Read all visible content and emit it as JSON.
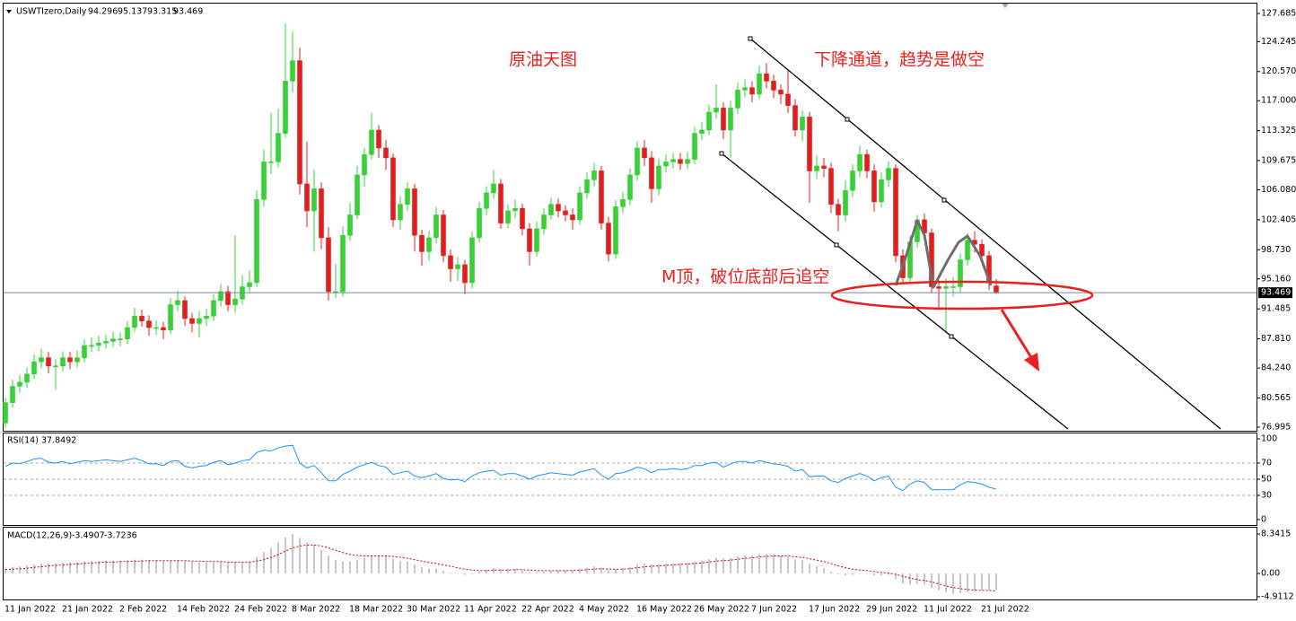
{
  "chart_data": [
    {
      "type": "candlestick",
      "title": "USWTIzero,Daily",
      "up_color": "#35d135",
      "down_color": "#e51d1d",
      "current_price_line_color": "#778899",
      "annotation_color": "#e8201e",
      "categories": [
        "11 Jan 2022",
        null,
        null,
        null,
        null,
        null,
        null,
        null,
        "21 Jan 2022",
        null,
        null,
        null,
        null,
        null,
        null,
        null,
        "2 Feb 2022",
        null,
        null,
        null,
        null,
        null,
        null,
        null,
        "14 Feb 2022",
        null,
        null,
        null,
        null,
        null,
        null,
        null,
        "24 Feb 2022",
        null,
        null,
        null,
        null,
        null,
        null,
        null,
        "8 Mar 2022",
        null,
        null,
        null,
        null,
        null,
        null,
        null,
        "18 Mar 2022",
        null,
        null,
        null,
        null,
        null,
        null,
        null,
        "30 Mar 2022",
        null,
        null,
        null,
        null,
        null,
        null,
        null,
        "11 Apr 2022",
        null,
        null,
        null,
        null,
        null,
        null,
        null,
        "22 Apr 2022",
        null,
        null,
        null,
        null,
        null,
        null,
        null,
        "4 May 2022",
        null,
        null,
        null,
        null,
        null,
        null,
        null,
        "16 May 2022",
        null,
        null,
        null,
        null,
        null,
        null,
        null,
        "26 May 2022",
        null,
        null,
        null,
        null,
        null,
        null,
        null,
        "7 Jun 2022",
        null,
        null,
        null,
        null,
        null,
        null,
        null,
        "17 Jun 2022",
        null,
        null,
        null,
        null,
        null,
        null,
        null,
        "29 Jun 2022",
        null,
        null,
        null,
        null,
        null,
        null,
        null,
        "11 Jul 2022",
        null,
        null,
        null,
        null,
        null,
        null,
        null,
        "21 Jul 2022",
        null,
        null
      ],
      "open": [
        77.5,
        80.0,
        82.0,
        82.5,
        83.5,
        85.0,
        85.5,
        84.5,
        84.5,
        85.5,
        85.0,
        85.5,
        87.0,
        87.0,
        87.3,
        87.5,
        87.8,
        87.8,
        89.2,
        90.6,
        90.0,
        89.2,
        89.2,
        88.9,
        92.0,
        92.5,
        90.3,
        89.7,
        90.3,
        90.6,
        92.5,
        93.6,
        92.0,
        92.7,
        94.2,
        94.7,
        104.9,
        109.5,
        109.5,
        113.0,
        119.4,
        121.9,
        106.8,
        103.5,
        106.2,
        100.2,
        93.6,
        93.6,
        100.5,
        103.0,
        107.9,
        110.4,
        113.4,
        111.2,
        110.0,
        102.4,
        104.3,
        106.2,
        100.5,
        98.5,
        100.2,
        103.0,
        98.0,
        96.4,
        96.9,
        94.7,
        100.2,
        103.8,
        105.7,
        106.8,
        102.0,
        103.5,
        103.8,
        101.3,
        98.5,
        101.3,
        103.0,
        104.3,
        103.5,
        103.0,
        102.4,
        105.7,
        107.3,
        108.4,
        102.0,
        98.2,
        104.0,
        104.9,
        107.9,
        111.2,
        110.0,
        106.2,
        109.0,
        109.5,
        109.8,
        109.3,
        109.8,
        113.0,
        113.4,
        115.6,
        116.1,
        113.4,
        116.1,
        118.3,
        118.6,
        117.8,
        120.3,
        119.4,
        118.3,
        117.8,
        116.4,
        113.4,
        115.0,
        108.4,
        109.0,
        108.7,
        104.3,
        103.0,
        106.0,
        108.4,
        110.4,
        108.4,
        104.6,
        107.3,
        108.7,
        98.0,
        95.3,
        99.7,
        102.4,
        100.8,
        94.2,
        94.0,
        94.2,
        94.2,
        97.5,
        99.9,
        99.4,
        98.0,
        94.296
      ],
      "high": [
        80.6,
        82.8,
        83.4,
        84.3,
        85.9,
        86.6,
        86.2,
        85.3,
        86.3,
        86.2,
        86.4,
        87.8,
        88.0,
        88.2,
        88.3,
        88.7,
        88.6,
        90.0,
        91.6,
        91.4,
        90.7,
        90.1,
        89.9,
        92.8,
        93.7,
        93.0,
        91.0,
        91.2,
        91.5,
        93.3,
        94.5,
        94.3,
        100.5,
        95.6,
        96.2,
        106.0,
        111.0,
        115.5,
        116.0,
        126.5,
        125.5,
        123.5,
        112.0,
        108.5,
        107.0,
        101.5,
        97.0,
        101.6,
        104.5,
        109.0,
        111.2,
        115.5,
        114.0,
        112.2,
        110.5,
        105.3,
        107.0,
        106.8,
        101.2,
        101.0,
        104.0,
        103.6,
        98.8,
        97.8,
        97.5,
        101.0,
        104.6,
        106.5,
        108.5,
        107.4,
        104.3,
        104.9,
        104.4,
        102.0,
        102.2,
        103.8,
        105.1,
        105.0,
        104.2,
        103.8,
        106.5,
        108.2,
        109.4,
        109.0,
        102.8,
        104.8,
        105.8,
        108.7,
        112.0,
        112.2,
        110.8,
        109.9,
        110.4,
        110.6,
        110.6,
        110.7,
        113.8,
        114.4,
        116.5,
        119.0,
        116.8,
        117.0,
        119.2,
        119.6,
        119.4,
        121.3,
        121.6,
        120.2,
        119.0,
        120.8,
        117.2,
        115.8,
        115.6,
        110.3,
        110.0,
        109.4,
        105.0,
        107.2,
        109.2,
        111.5,
        111.0,
        109.2,
        108.2,
        109.6,
        109.2,
        98.8,
        100.5,
        103.0,
        103.2,
        101.3,
        95.0,
        95.2,
        95.4,
        98.3,
        100.8,
        101.0,
        100.0,
        98.6,
        95.137
      ],
      "low": [
        76.9,
        79.4,
        81.2,
        81.8,
        82.9,
        84.2,
        83.6,
        81.6,
        83.8,
        84.1,
        84.3,
        84.9,
        86.2,
        86.3,
        86.6,
        86.8,
        86.9,
        87.2,
        88.7,
        89.3,
        88.2,
        88.3,
        87.8,
        88.4,
        91.2,
        89.4,
        88.6,
        88.0,
        89.4,
        90.0,
        91.8,
        91.2,
        91.0,
        92.0,
        93.5,
        94.2,
        104.0,
        108.0,
        108.8,
        112.5,
        118.0,
        105.5,
        101.5,
        98.5,
        98.8,
        92.5,
        92.8,
        93.0,
        99.8,
        102.5,
        106.5,
        109.8,
        110.0,
        108.5,
        101.5,
        101.2,
        103.5,
        98.5,
        96.8,
        97.4,
        99.5,
        97.2,
        94.8,
        94.9,
        93.3,
        94.0,
        99.6,
        103.0,
        105.0,
        101.3,
        101.4,
        102.6,
        100.5,
        96.8,
        97.9,
        100.6,
        102.4,
        102.7,
        102.2,
        101.2,
        101.8,
        105.0,
        106.5,
        101.2,
        97.3,
        97.6,
        103.2,
        104.2,
        107.2,
        109.0,
        104.5,
        105.4,
        108.2,
        108.7,
        108.5,
        108.6,
        109.2,
        112.2,
        112.8,
        114.8,
        112.3,
        110.0,
        115.4,
        117.4,
        116.8,
        117.2,
        118.5,
        117.3,
        116.6,
        115.5,
        112.6,
        112.0,
        104.5,
        107.4,
        107.6,
        103.2,
        101.0,
        102.2,
        105.2,
        107.6,
        107.5,
        103.4,
        103.9,
        106.4,
        97.2,
        94.5,
        94.6,
        99.0,
        99.8,
        93.4,
        91.5,
        88.5,
        93.0,
        93.5,
        96.8,
        98.4,
        97.2,
        93.8,
        93.315
      ],
      "close": [
        80.0,
        82.0,
        82.5,
        83.5,
        85.0,
        85.5,
        84.5,
        84.5,
        85.5,
        85.0,
        85.5,
        87.0,
        87.0,
        87.3,
        87.5,
        87.8,
        87.8,
        89.2,
        90.6,
        90.0,
        89.2,
        89.2,
        88.9,
        92.0,
        92.5,
        90.3,
        89.7,
        90.3,
        90.6,
        92.5,
        93.6,
        92.0,
        92.7,
        94.2,
        94.7,
        104.9,
        109.5,
        109.5,
        113.0,
        119.4,
        121.9,
        106.8,
        103.5,
        106.2,
        100.2,
        93.6,
        93.6,
        100.5,
        103.0,
        107.9,
        110.4,
        113.4,
        111.2,
        110.0,
        102.4,
        104.3,
        106.2,
        100.5,
        98.5,
        100.2,
        103.0,
        98.0,
        96.4,
        96.9,
        94.7,
        100.2,
        103.8,
        105.7,
        106.8,
        102.0,
        103.5,
        103.8,
        101.3,
        98.5,
        101.3,
        103.0,
        104.3,
        103.5,
        103.0,
        102.4,
        105.7,
        107.3,
        108.4,
        102.0,
        98.2,
        104.0,
        104.9,
        107.9,
        111.2,
        110.0,
        106.2,
        109.0,
        109.5,
        109.8,
        109.3,
        109.8,
        113.0,
        113.4,
        115.6,
        116.1,
        113.4,
        116.1,
        118.3,
        118.6,
        117.8,
        120.3,
        119.4,
        118.3,
        117.8,
        116.4,
        113.4,
        115.0,
        108.4,
        109.0,
        108.7,
        104.3,
        103.0,
        106.0,
        108.4,
        110.4,
        108.4,
        104.6,
        107.3,
        108.7,
        98.0,
        95.3,
        99.7,
        102.4,
        100.8,
        94.2,
        94.0,
        94.2,
        94.2,
        97.5,
        99.9,
        99.4,
        98.0,
        94.7,
        93.469
      ],
      "ylim": [
        76.55,
        128.9
      ],
      "yticks": [
        127.685,
        124.245,
        {
          "value": 120.57,
          "label": "120.570"
        },
        {
          "value": 117,
          "label": "117.000"
        },
        113.325,
        109.675,
        {
          "value": 106.08,
          "label": "106.080"
        },
        102.405,
        {
          "value": 98.73,
          "label": "98.730"
        },
        {
          "value": 95.16,
          "label": "95.160"
        },
        91.485,
        {
          "value": 87.81,
          "label": "87.810"
        },
        {
          "value": 84.24,
          "label": "84.240"
        },
        80.565,
        76.995
      ],
      "annotations": [
        "原油天图",
        "下降通道，趋势是做空",
        "M顶，破位底部后追空"
      ]
    },
    {
      "type": "line",
      "title": "RSI(14)",
      "color": "#1e90ff",
      "grid": "dashed",
      "values": [
        66,
        70,
        69,
        72,
        75,
        76,
        71,
        70,
        72,
        69,
        71,
        73,
        72,
        73,
        74,
        73,
        72,
        74,
        76,
        73,
        69,
        69,
        67,
        72,
        73,
        66,
        64,
        66,
        67,
        71,
        73,
        68,
        70,
        73,
        74,
        83,
        86,
        85,
        89,
        91,
        92,
        70,
        64,
        67,
        58,
        48,
        48,
        56,
        60,
        65,
        68,
        71,
        67,
        65,
        56,
        58,
        60,
        54,
        52,
        54,
        57,
        51,
        49,
        50,
        47,
        54,
        58,
        60,
        61,
        55,
        57,
        57,
        54,
        50,
        54,
        56,
        58,
        57,
        56,
        55,
        59,
        61,
        63,
        55,
        50,
        57,
        58,
        61,
        65,
        63,
        58,
        62,
        62,
        63,
        62,
        63,
        67,
        67,
        70,
        71,
        65,
        69,
        72,
        72,
        70,
        73,
        71,
        69,
        68,
        66,
        60,
        62,
        53,
        54,
        54,
        48,
        46,
        51,
        54,
        57,
        54,
        48,
        52,
        54,
        40,
        36,
        44,
        48,
        46,
        37,
        37,
        37,
        37,
        43,
        47,
        46,
        44,
        40,
        37.8492
      ],
      "ylim": [
        -6.7,
        106.7
      ],
      "yticks": [
        100,
        70,
        50,
        30,
        0
      ]
    },
    {
      "type": "macd",
      "title": "MACD(12,26,9)",
      "series": [
        {
          "type": "bar",
          "color": "#b4b4b4",
          "values": [
            1.2,
            1.4,
            1.5,
            1.7,
            1.9,
            2.1,
            2.2,
            2.2,
            2.3,
            2.3,
            2.4,
            2.5,
            2.6,
            2.6,
            2.7,
            2.7,
            2.7,
            2.8,
            2.9,
            2.9,
            2.8,
            2.7,
            2.6,
            2.7,
            2.8,
            2.6,
            2.4,
            2.3,
            2.2,
            2.3,
            2.4,
            2.3,
            2.3,
            2.4,
            2.5,
            3.4,
            4.5,
            5.4,
            6.5,
            7.6,
            8.3,
            7.5,
            6.5,
            6.0,
            5.0,
            3.8,
            2.8,
            2.5,
            2.5,
            2.9,
            3.3,
            3.7,
            3.8,
            3.8,
            3.1,
            2.7,
            2.5,
            1.9,
            1.3,
            1.0,
            1.0,
            0.6,
            0.2,
            0.0,
            -0.3,
            0.0,
            0.4,
            0.8,
            1.1,
            0.9,
            0.9,
            0.9,
            0.7,
            0.3,
            0.3,
            0.4,
            0.6,
            0.7,
            0.7,
            0.7,
            0.9,
            1.2,
            1.5,
            1.2,
            0.7,
            0.9,
            1.1,
            1.4,
            1.9,
            2.1,
            1.9,
            2.0,
            2.1,
            2.2,
            2.2,
            2.2,
            2.5,
            2.7,
            3.0,
            3.3,
            3.2,
            3.3,
            3.6,
            3.8,
            3.8,
            4.1,
            4.1,
            4.0,
            3.8,
            3.5,
            3.0,
            2.8,
            2.0,
            1.5,
            1.1,
            0.4,
            -0.2,
            -0.4,
            -0.3,
            0.0,
            0.0,
            -0.4,
            -0.4,
            -0.3,
            -1.2,
            -2.1,
            -2.3,
            -2.2,
            -2.3,
            -3.1,
            -3.6,
            -4.0,
            -4.3,
            -4.2,
            -3.9,
            -3.7,
            -3.6,
            -3.6,
            -3.4907
          ]
        },
        {
          "type": "line",
          "color": "#cc0000",
          "dash": true,
          "values": [
            0.8,
            0.9,
            1.0,
            1.1,
            1.3,
            1.4,
            1.6,
            1.7,
            1.8,
            1.9,
            2.0,
            2.1,
            2.2,
            2.3,
            2.4,
            2.4,
            2.5,
            2.5,
            2.6,
            2.6,
            2.7,
            2.7,
            2.7,
            2.7,
            2.7,
            2.7,
            2.6,
            2.6,
            2.5,
            2.5,
            2.5,
            2.4,
            2.4,
            2.4,
            2.4,
            2.6,
            2.9,
            3.4,
            4.0,
            4.7,
            5.4,
            5.8,
            6.0,
            6.0,
            5.8,
            5.4,
            4.9,
            4.4,
            4.0,
            3.8,
            3.7,
            3.7,
            3.7,
            3.7,
            3.6,
            3.4,
            3.2,
            2.9,
            2.6,
            2.3,
            2.1,
            1.8,
            1.5,
            1.2,
            0.9,
            0.7,
            0.6,
            0.6,
            0.7,
            0.7,
            0.7,
            0.8,
            0.8,
            0.7,
            0.6,
            0.6,
            0.6,
            0.6,
            0.6,
            0.6,
            0.7,
            0.8,
            0.9,
            1.0,
            0.9,
            0.9,
            0.9,
            1.0,
            1.2,
            1.4,
            1.5,
            1.6,
            1.7,
            1.8,
            1.9,
            2.0,
            2.1,
            2.2,
            2.4,
            2.6,
            2.7,
            2.8,
            3.0,
            3.2,
            3.3,
            3.5,
            3.6,
            3.7,
            3.7,
            3.7,
            3.5,
            3.4,
            3.1,
            2.8,
            2.5,
            2.1,
            1.6,
            1.2,
            0.9,
            0.7,
            0.6,
            0.4,
            0.2,
            0.1,
            -0.2,
            -0.6,
            -1.0,
            -1.3,
            -1.5,
            -1.8,
            -2.2,
            -2.6,
            -3.0,
            -3.2,
            -3.4,
            -3.5,
            -3.6,
            -3.6,
            -3.7236
          ]
        }
      ],
      "ylim": [
        -5.5,
        9.67
      ],
      "yticks": [
        8.3415,
        {
          "value": 0,
          "label": "0.00"
        },
        -4.9112
      ]
    }
  ]
}
